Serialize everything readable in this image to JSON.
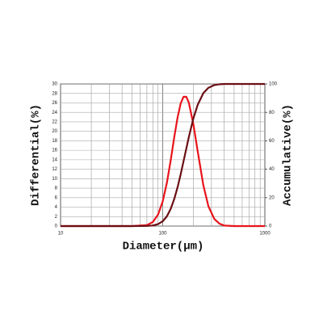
{
  "chart_data": {
    "type": "line",
    "x_label": "Diameter(μm)",
    "y_label": "Differential(%)",
    "y2_label": "Accumulative(%)",
    "x": [
      10,
      50,
      70,
      80,
      90,
      100,
      110,
      120,
      130,
      140,
      150,
      160,
      170,
      180,
      200,
      220,
      250,
      280,
      320,
      360,
      400,
      500,
      1000
    ],
    "series": [
      {
        "color": "#e8141c",
        "values": [
          0,
          0,
          0.2,
          0.85,
          2.4,
          5.2,
          9.2,
          14.0,
          18.9,
          23.0,
          25.9,
          27.3,
          27.3,
          26.1,
          21.4,
          15.8,
          8.6,
          4.2,
          1.5,
          0.5,
          0.1,
          0,
          0
        ]
      },
      {
        "color": "#6b0f14",
        "axis": "y2",
        "values": [
          0,
          0,
          0.1,
          0.4,
          1.4,
          3.4,
          6.9,
          12.3,
          19.3,
          27.5,
          36.5,
          45.7,
          54.3,
          62.5,
          76.0,
          85.3,
          93.6,
          97.3,
          99.2,
          99.8,
          100,
          100,
          100
        ]
      }
    ],
    "log_x": true,
    "xlim": [
      10,
      1000
    ],
    "xticks": [
      10,
      100,
      1000
    ],
    "x_minor_grid": [
      20,
      30,
      40,
      50,
      60,
      70,
      80,
      90,
      200,
      300,
      400,
      500,
      600,
      700,
      800,
      900
    ],
    "ylim": [
      0,
      30
    ],
    "yticks": [
      0,
      2,
      4,
      6,
      8,
      10,
      12,
      14,
      16,
      18,
      20,
      22,
      24,
      26,
      28,
      30
    ],
    "y2lim": [
      0,
      100
    ],
    "y2ticks": [
      0,
      20,
      40,
      60,
      80,
      100
    ],
    "grid": true
  }
}
